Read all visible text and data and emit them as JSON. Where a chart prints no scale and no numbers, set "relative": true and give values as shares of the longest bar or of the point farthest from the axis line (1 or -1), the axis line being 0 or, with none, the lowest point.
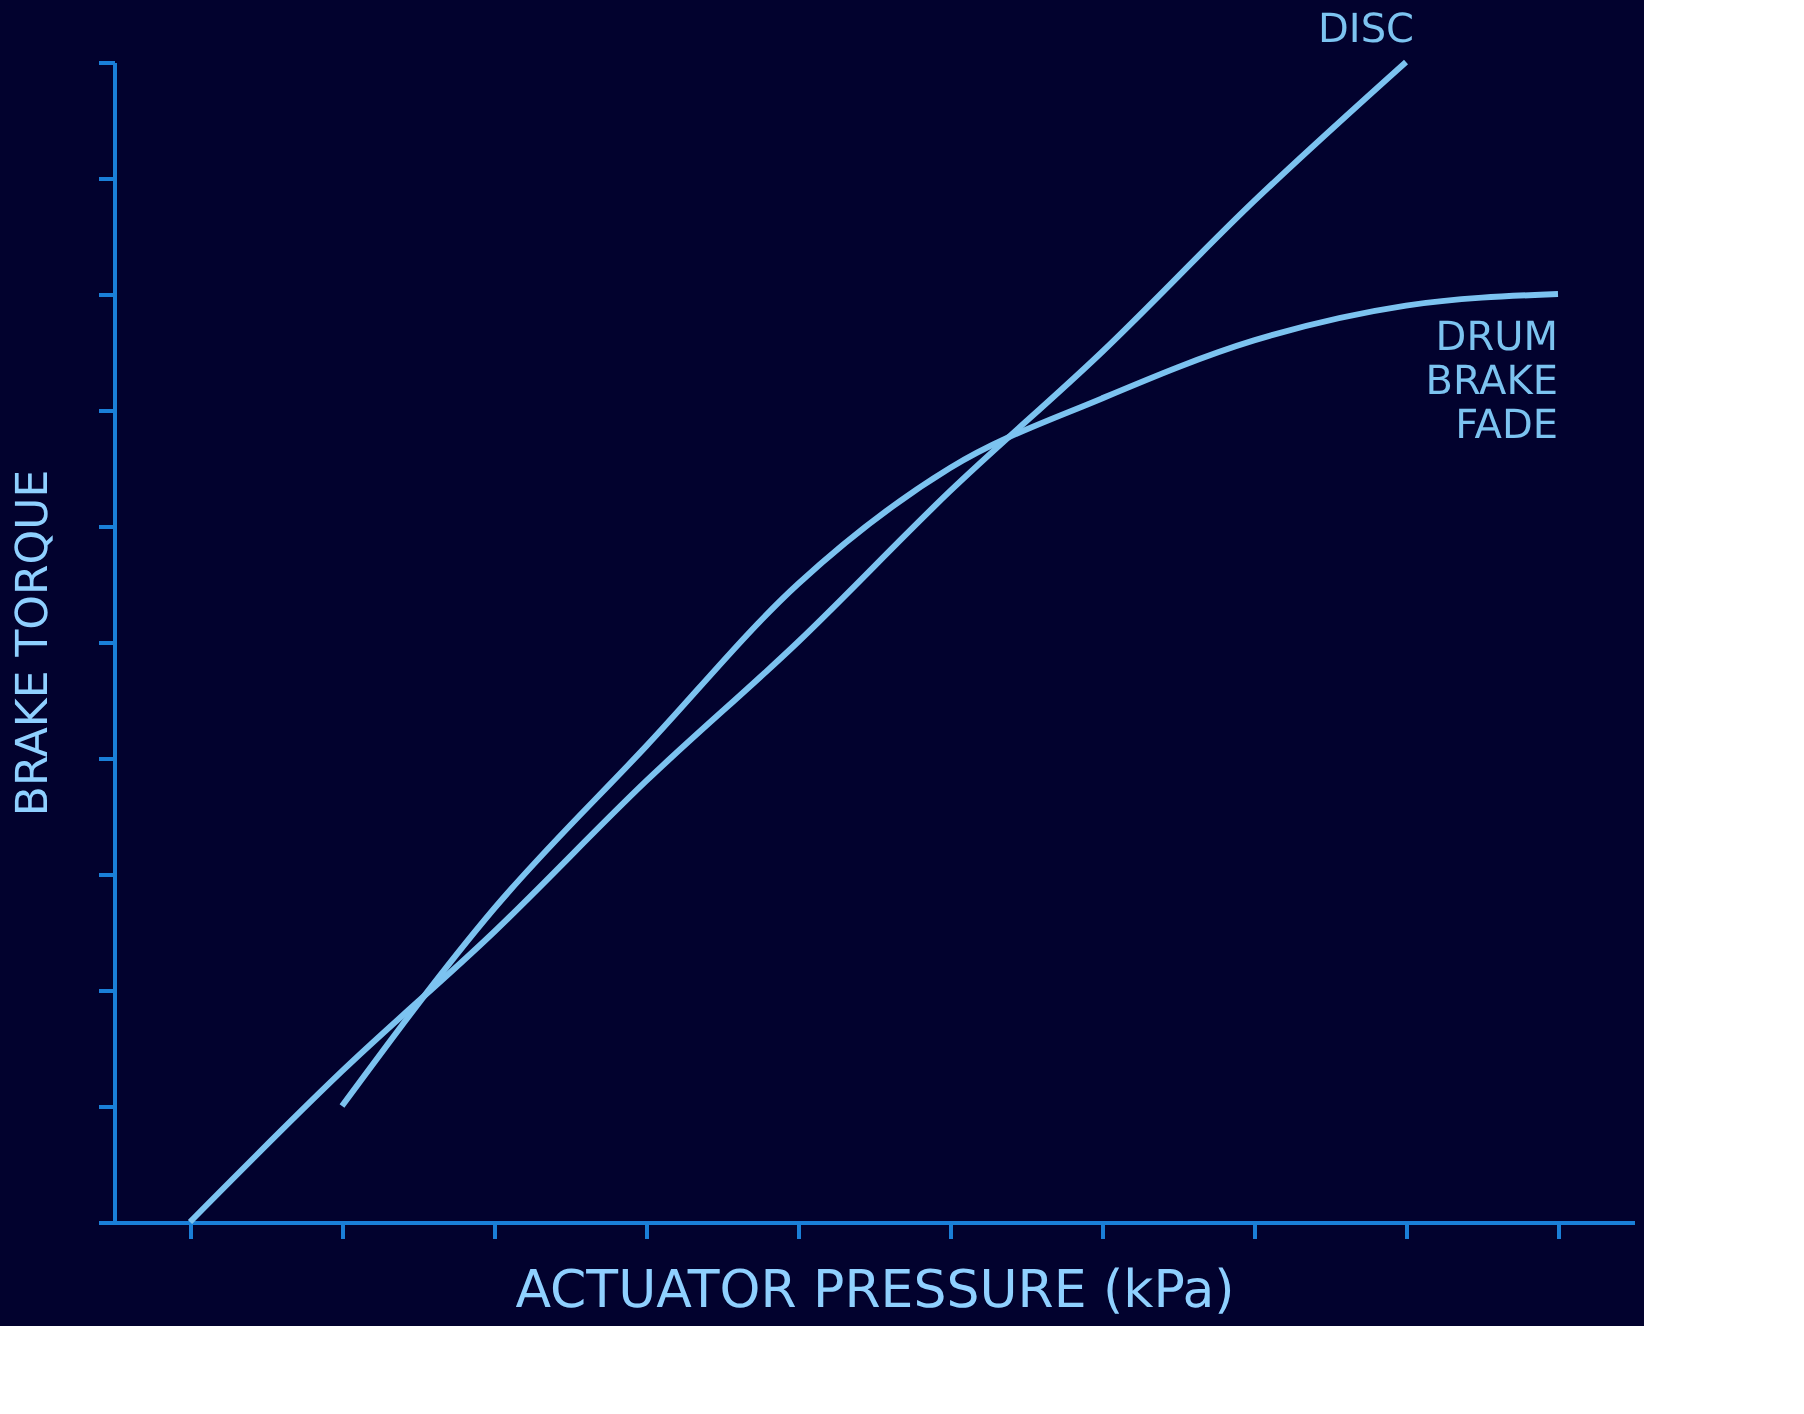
{
  "chart_data": {
    "type": "line",
    "relative": true,
    "tick_labels": false,
    "xlabel": "ACTUATOR PRESSURE (kPa)",
    "ylabel": "BRAKE TORQUE",
    "categories": [
      null,
      null,
      null,
      null,
      null,
      null,
      null,
      null,
      null,
      null
    ],
    "series": [
      {
        "name": "DISC",
        "color": "#7cc3f0",
        "values": [
          0.0,
          0.13,
          0.25,
          0.38,
          0.5,
          0.63,
          0.75,
          0.88,
          1.0,
          null
        ]
      },
      {
        "name": "DRUM BRAKE FADE",
        "color": "#7cc3f0",
        "values": [
          null,
          0.1,
          0.27,
          0.41,
          0.55,
          0.65,
          0.71,
          0.76,
          0.79,
          0.8
        ]
      }
    ]
  }
}
